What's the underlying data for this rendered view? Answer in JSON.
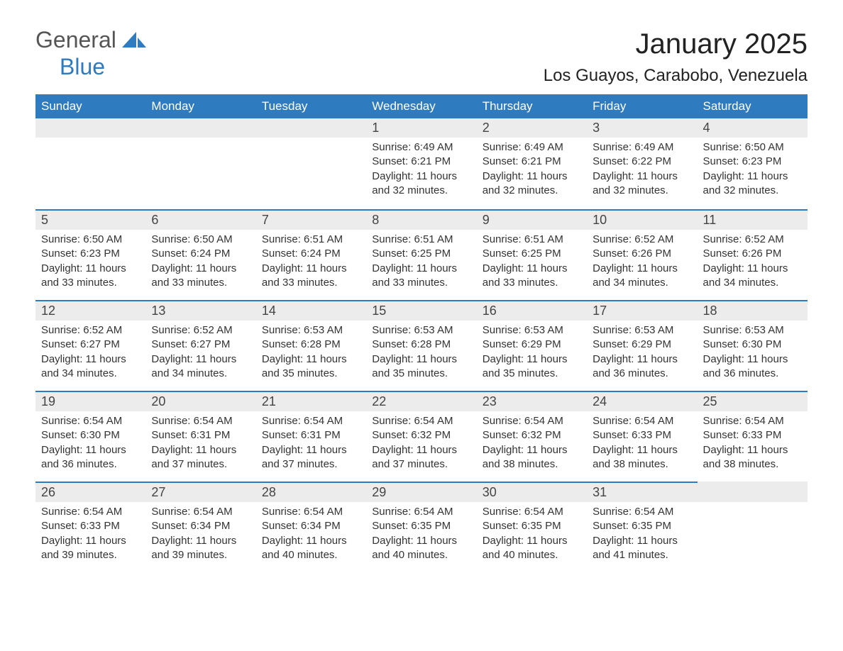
{
  "logo": {
    "word1": "General",
    "word2": "Blue"
  },
  "title": "January 2025",
  "location": "Los Guayos, Carabobo, Venezuela",
  "colors": {
    "header_bg": "#2f7bbf",
    "header_text": "#ffffff",
    "daynum_bg": "#ececec",
    "border_top": "#2f7bbf",
    "body_text": "#333333",
    "page_bg": "#ffffff",
    "logo_gray": "#555555",
    "logo_blue": "#2f7bbf"
  },
  "typography": {
    "title_fontsize": 40,
    "location_fontsize": 24,
    "dayheader_fontsize": 17,
    "daynum_fontsize": 18,
    "body_fontsize": 15,
    "font_family": "Arial"
  },
  "day_names": [
    "Sunday",
    "Monday",
    "Tuesday",
    "Wednesday",
    "Thursday",
    "Friday",
    "Saturday"
  ],
  "labels": {
    "sunrise": "Sunrise:",
    "sunset": "Sunset:",
    "daylight": "Daylight:"
  },
  "weeks": [
    [
      null,
      null,
      null,
      {
        "n": 1,
        "sunrise": "6:49 AM",
        "sunset": "6:21 PM",
        "daylight": "11 hours and 32 minutes."
      },
      {
        "n": 2,
        "sunrise": "6:49 AM",
        "sunset": "6:21 PM",
        "daylight": "11 hours and 32 minutes."
      },
      {
        "n": 3,
        "sunrise": "6:49 AM",
        "sunset": "6:22 PM",
        "daylight": "11 hours and 32 minutes."
      },
      {
        "n": 4,
        "sunrise": "6:50 AM",
        "sunset": "6:23 PM",
        "daylight": "11 hours and 32 minutes."
      }
    ],
    [
      {
        "n": 5,
        "sunrise": "6:50 AM",
        "sunset": "6:23 PM",
        "daylight": "11 hours and 33 minutes."
      },
      {
        "n": 6,
        "sunrise": "6:50 AM",
        "sunset": "6:24 PM",
        "daylight": "11 hours and 33 minutes."
      },
      {
        "n": 7,
        "sunrise": "6:51 AM",
        "sunset": "6:24 PM",
        "daylight": "11 hours and 33 minutes."
      },
      {
        "n": 8,
        "sunrise": "6:51 AM",
        "sunset": "6:25 PM",
        "daylight": "11 hours and 33 minutes."
      },
      {
        "n": 9,
        "sunrise": "6:51 AM",
        "sunset": "6:25 PM",
        "daylight": "11 hours and 33 minutes."
      },
      {
        "n": 10,
        "sunrise": "6:52 AM",
        "sunset": "6:26 PM",
        "daylight": "11 hours and 34 minutes."
      },
      {
        "n": 11,
        "sunrise": "6:52 AM",
        "sunset": "6:26 PM",
        "daylight": "11 hours and 34 minutes."
      }
    ],
    [
      {
        "n": 12,
        "sunrise": "6:52 AM",
        "sunset": "6:27 PM",
        "daylight": "11 hours and 34 minutes."
      },
      {
        "n": 13,
        "sunrise": "6:52 AM",
        "sunset": "6:27 PM",
        "daylight": "11 hours and 34 minutes."
      },
      {
        "n": 14,
        "sunrise": "6:53 AM",
        "sunset": "6:28 PM",
        "daylight": "11 hours and 35 minutes."
      },
      {
        "n": 15,
        "sunrise": "6:53 AM",
        "sunset": "6:28 PM",
        "daylight": "11 hours and 35 minutes."
      },
      {
        "n": 16,
        "sunrise": "6:53 AM",
        "sunset": "6:29 PM",
        "daylight": "11 hours and 35 minutes."
      },
      {
        "n": 17,
        "sunrise": "6:53 AM",
        "sunset": "6:29 PM",
        "daylight": "11 hours and 36 minutes."
      },
      {
        "n": 18,
        "sunrise": "6:53 AM",
        "sunset": "6:30 PM",
        "daylight": "11 hours and 36 minutes."
      }
    ],
    [
      {
        "n": 19,
        "sunrise": "6:54 AM",
        "sunset": "6:30 PM",
        "daylight": "11 hours and 36 minutes."
      },
      {
        "n": 20,
        "sunrise": "6:54 AM",
        "sunset": "6:31 PM",
        "daylight": "11 hours and 37 minutes."
      },
      {
        "n": 21,
        "sunrise": "6:54 AM",
        "sunset": "6:31 PM",
        "daylight": "11 hours and 37 minutes."
      },
      {
        "n": 22,
        "sunrise": "6:54 AM",
        "sunset": "6:32 PM",
        "daylight": "11 hours and 37 minutes."
      },
      {
        "n": 23,
        "sunrise": "6:54 AM",
        "sunset": "6:32 PM",
        "daylight": "11 hours and 38 minutes."
      },
      {
        "n": 24,
        "sunrise": "6:54 AM",
        "sunset": "6:33 PM",
        "daylight": "11 hours and 38 minutes."
      },
      {
        "n": 25,
        "sunrise": "6:54 AM",
        "sunset": "6:33 PM",
        "daylight": "11 hours and 38 minutes."
      }
    ],
    [
      {
        "n": 26,
        "sunrise": "6:54 AM",
        "sunset": "6:33 PM",
        "daylight": "11 hours and 39 minutes."
      },
      {
        "n": 27,
        "sunrise": "6:54 AM",
        "sunset": "6:34 PM",
        "daylight": "11 hours and 39 minutes."
      },
      {
        "n": 28,
        "sunrise": "6:54 AM",
        "sunset": "6:34 PM",
        "daylight": "11 hours and 40 minutes."
      },
      {
        "n": 29,
        "sunrise": "6:54 AM",
        "sunset": "6:35 PM",
        "daylight": "11 hours and 40 minutes."
      },
      {
        "n": 30,
        "sunrise": "6:54 AM",
        "sunset": "6:35 PM",
        "daylight": "11 hours and 40 minutes."
      },
      {
        "n": 31,
        "sunrise": "6:54 AM",
        "sunset": "6:35 PM",
        "daylight": "11 hours and 41 minutes."
      },
      null
    ]
  ]
}
